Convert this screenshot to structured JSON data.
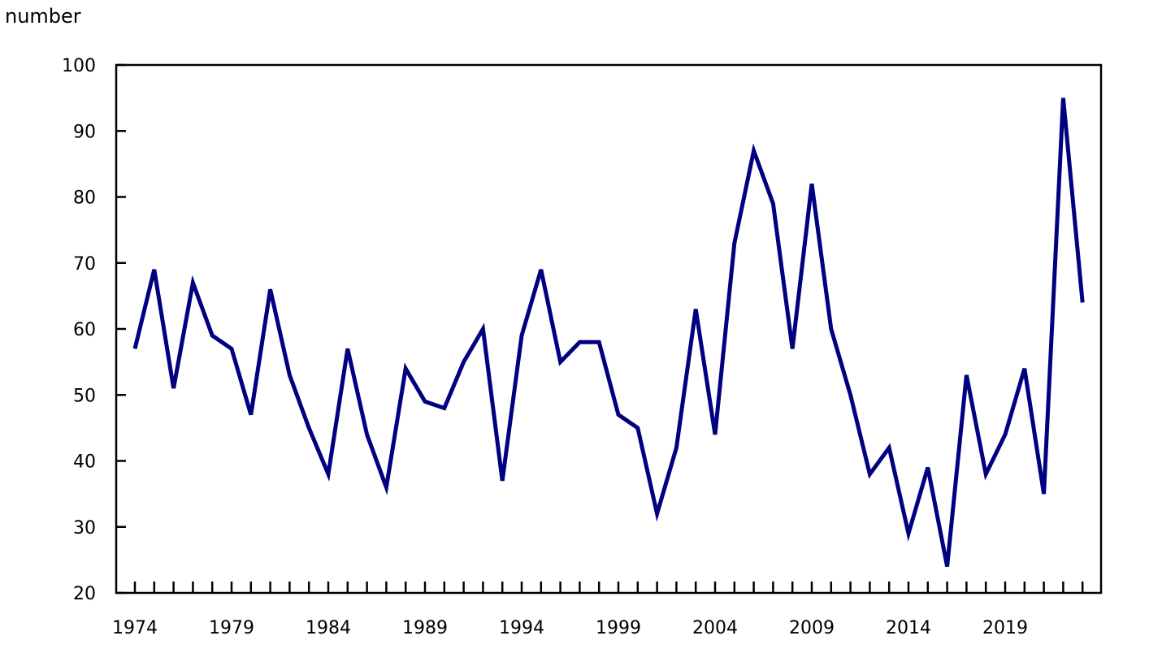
{
  "chart_data": {
    "type": "line",
    "title": "",
    "ylabel": "number",
    "xlabel": "",
    "ylim": [
      20,
      100
    ],
    "yticks": [
      20,
      30,
      40,
      50,
      60,
      70,
      80,
      90,
      100
    ],
    "xtick_labels": [
      "1974",
      "1979",
      "1984",
      "1989",
      "1994",
      "1999",
      "2004",
      "2009",
      "2014",
      "2019"
    ],
    "grid": false,
    "legend": null,
    "line_color": "#000080",
    "x": [
      1974,
      1975,
      1976,
      1977,
      1978,
      1979,
      1980,
      1981,
      1982,
      1983,
      1984,
      1985,
      1986,
      1987,
      1988,
      1989,
      1990,
      1991,
      1992,
      1993,
      1994,
      1995,
      1996,
      1997,
      1998,
      1999,
      2000,
      2001,
      2002,
      2003,
      2004,
      2005,
      2006,
      2007,
      2008,
      2009,
      2010,
      2011,
      2012,
      2013,
      2014,
      2015,
      2016,
      2017,
      2018,
      2019,
      2020,
      2021,
      2022,
      2023
    ],
    "series": [
      {
        "name": "number",
        "values": [
          57,
          69,
          51,
          67,
          59,
          57,
          47,
          66,
          53,
          45,
          38,
          57,
          44,
          36,
          54,
          49,
          48,
          55,
          60,
          37,
          59,
          69,
          55,
          58,
          58,
          47,
          45,
          32,
          42,
          63,
          44,
          73,
          87,
          79,
          57,
          82,
          60,
          50,
          38,
          42,
          29,
          39,
          24,
          53,
          38,
          44,
          54,
          35,
          95,
          64
        ]
      }
    ]
  }
}
